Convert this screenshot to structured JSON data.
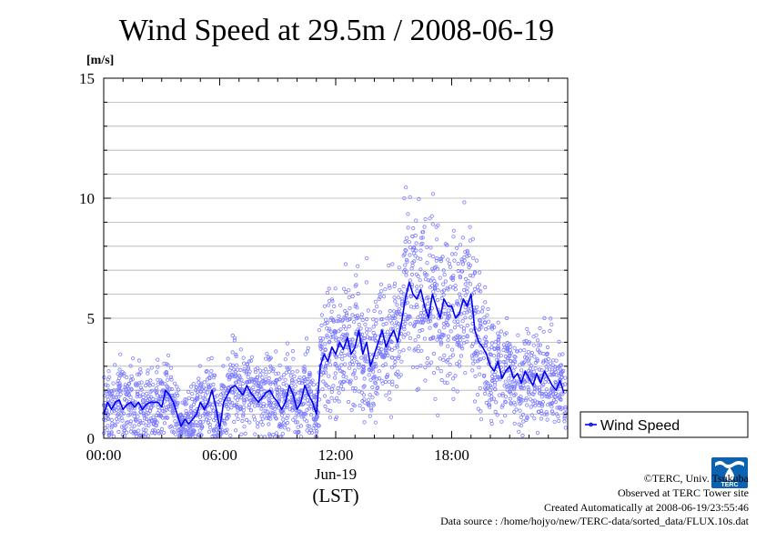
{
  "chart_data": {
    "type": "scatter",
    "title": "Wind Speed at 29.5m / 2008-06-19",
    "ylabel": "[m/s]",
    "xlabel": "(LST)",
    "date_label": "Jun-19",
    "ylim": [
      0,
      15
    ],
    "xlim_hours": [
      0,
      24
    ],
    "y_ticks": [
      "0",
      "5",
      "10",
      "15"
    ],
    "x_ticks": [
      {
        "label": "00:00",
        "hour": 0
      },
      {
        "label": "06:00",
        "hour": 6
      },
      {
        "label": "12:00",
        "hour": 12
      },
      {
        "label": "18:00",
        "hour": 18
      }
    ],
    "grid": true,
    "legend_placement": "right",
    "series": [
      {
        "name": "Wind Speed",
        "color": "#0000ee",
        "scatter_color": "#7b7bff",
        "x_hours": [
          0.0,
          0.2,
          0.4,
          0.6,
          0.8,
          1.0,
          1.2,
          1.4,
          1.6,
          1.8,
          2.0,
          2.2,
          2.4,
          2.6,
          2.8,
          3.0,
          3.2,
          3.4,
          3.6,
          3.8,
          4.0,
          4.2,
          4.4,
          4.6,
          4.8,
          5.0,
          5.2,
          5.4,
          5.6,
          5.8,
          6.0,
          6.2,
          6.4,
          6.6,
          6.8,
          7.0,
          7.2,
          7.4,
          7.6,
          7.8,
          8.0,
          8.2,
          8.4,
          8.6,
          8.8,
          9.0,
          9.2,
          9.4,
          9.6,
          9.8,
          10.0,
          10.2,
          10.4,
          10.6,
          10.8,
          11.0,
          11.2,
          11.4,
          11.6,
          11.8,
          12.0,
          12.2,
          12.4,
          12.6,
          12.8,
          13.0,
          13.2,
          13.4,
          13.6,
          13.8,
          14.0,
          14.2,
          14.4,
          14.6,
          14.8,
          15.0,
          15.2,
          15.4,
          15.6,
          15.8,
          16.0,
          16.2,
          16.4,
          16.6,
          16.8,
          17.0,
          17.2,
          17.4,
          17.6,
          17.8,
          18.0,
          18.2,
          18.4,
          18.6,
          18.8,
          19.0,
          19.2,
          19.4,
          19.6,
          19.8,
          20.0,
          20.2,
          20.4,
          20.6,
          20.8,
          21.0,
          21.2,
          21.4,
          21.6,
          21.8,
          22.0,
          22.2,
          22.4,
          22.6,
          22.8,
          23.0,
          23.2,
          23.4,
          23.6,
          23.8
        ],
        "values": [
          1.0,
          1.5,
          1.2,
          1.5,
          1.6,
          1.2,
          1.4,
          1.5,
          1.3,
          1.5,
          1.2,
          1.4,
          1.5,
          1.5,
          1.5,
          1.3,
          2.0,
          1.8,
          1.5,
          1.0,
          0.5,
          0.8,
          0.6,
          0.8,
          1.0,
          1.5,
          1.2,
          1.5,
          2.0,
          1.3,
          0.4,
          1.5,
          1.8,
          2.1,
          2.2,
          2.0,
          1.8,
          2.2,
          1.9,
          1.7,
          1.5,
          1.7,
          1.9,
          2.0,
          1.7,
          1.5,
          1.2,
          1.5,
          2.2,
          1.8,
          1.2,
          1.5,
          2.2,
          1.8,
          1.5,
          1.0,
          3.0,
          3.5,
          3.2,
          3.8,
          3.5,
          4.0,
          3.7,
          4.2,
          3.5,
          3.8,
          4.5,
          3.5,
          4.0,
          3.0,
          3.5,
          4.0,
          4.5,
          3.8,
          4.2,
          4.5,
          4.0,
          4.8,
          5.8,
          6.5,
          6.0,
          5.8,
          6.2,
          5.5,
          5.0,
          6.0,
          5.5,
          5.0,
          5.8,
          5.5,
          5.5,
          5.0,
          5.2,
          5.8,
          5.5,
          6.0,
          4.5,
          4.0,
          3.8,
          3.5,
          3.0,
          2.8,
          3.2,
          2.5,
          2.8,
          3.0,
          2.5,
          2.7,
          2.3,
          2.8,
          2.5,
          2.2,
          2.7,
          2.3,
          2.8,
          2.5,
          2.2,
          2.0,
          2.4,
          1.9
        ]
      }
    ]
  },
  "credits": {
    "copyright": "©TERC, Univ. Tsukuba",
    "observed": "Observed at TERC Tower site",
    "created": "Created Automatically at 2008-06-19/23:55:46",
    "source": "Data source : /home/hojyo/new/TERC-data/sorted_data/FLUX.10s.dat"
  },
  "logo": {
    "text": "TERC",
    "icon": "terc-logo-icon",
    "color": "#0b62b0"
  }
}
